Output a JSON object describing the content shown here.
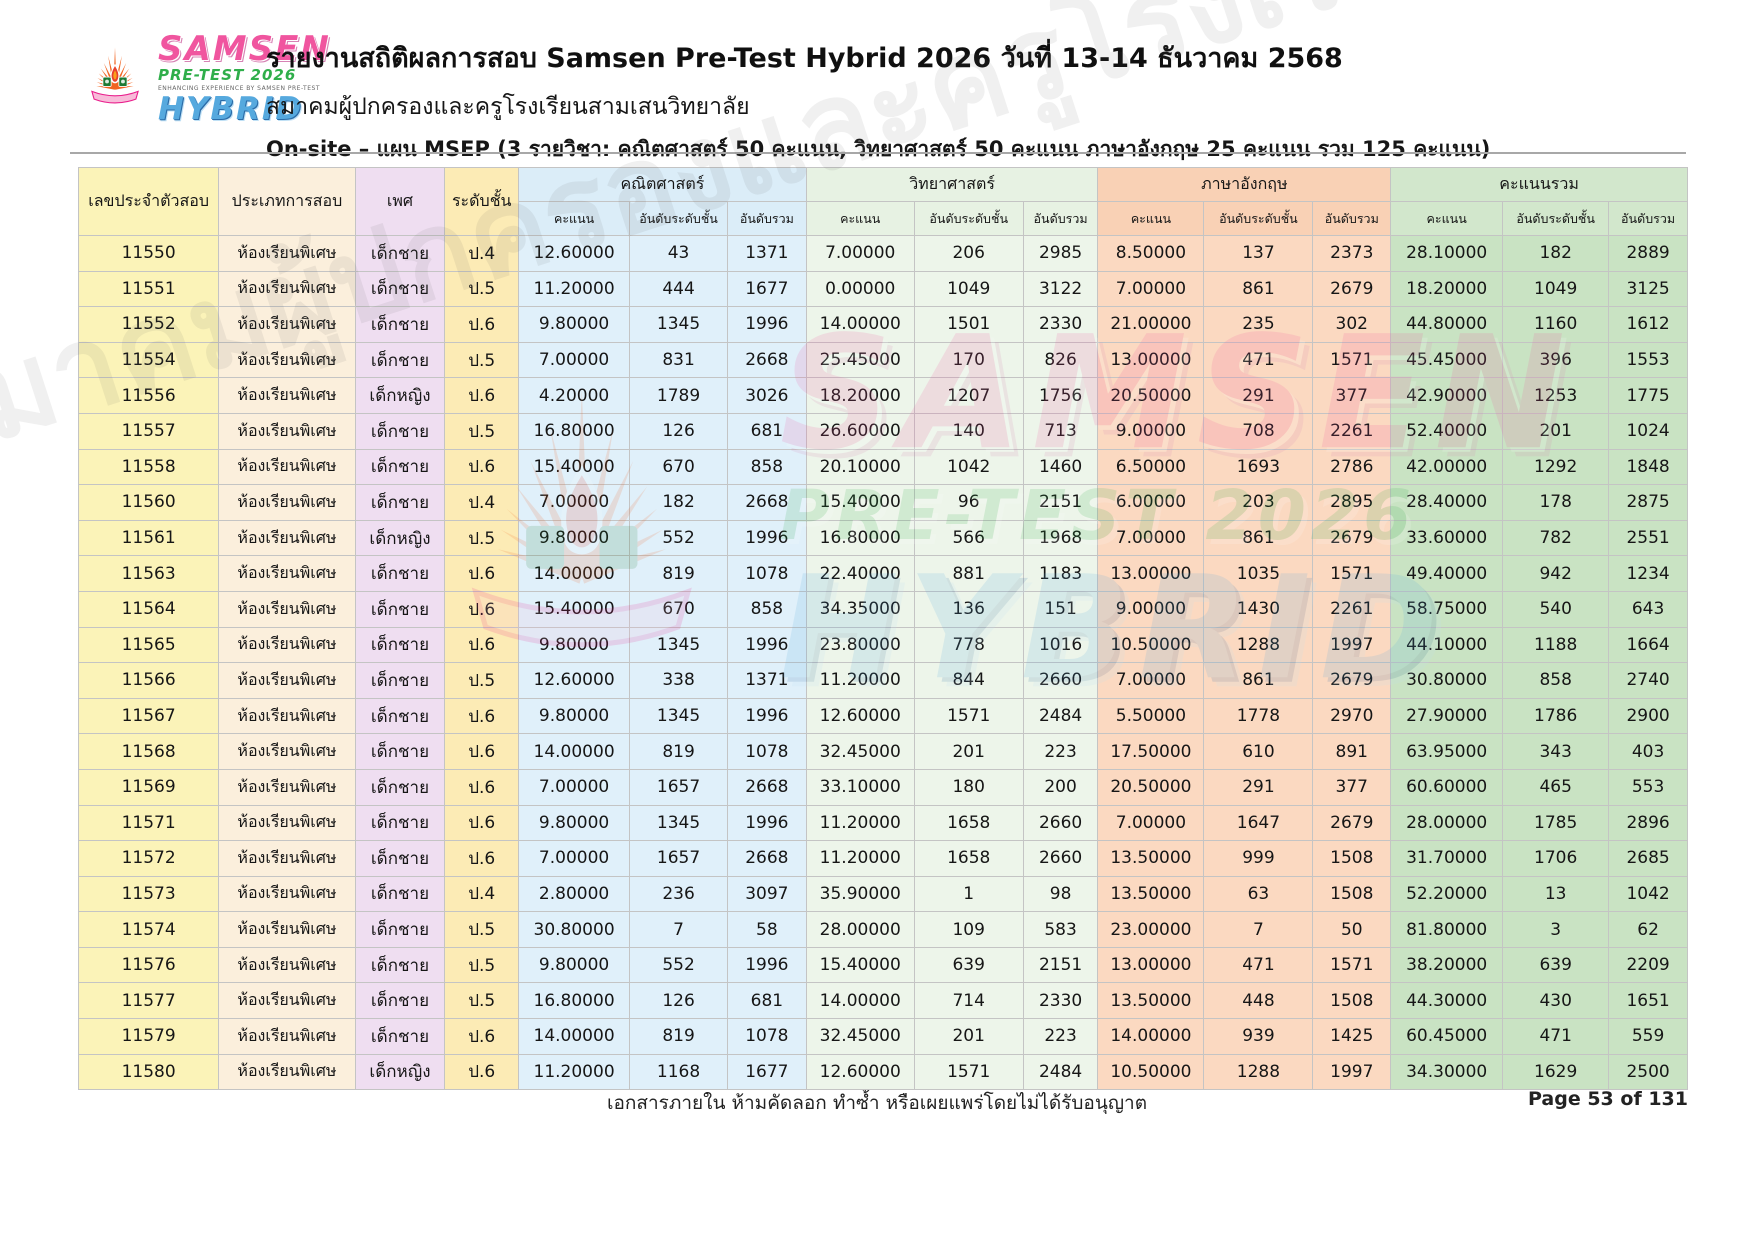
{
  "header": {
    "title": "รายงานสถิติผลการสอบ Samsen Pre-Test Hybrid 2026 วันที่ 13-14 ธันวาคม 2568",
    "subtitle": "สมาคมผู้ปกครองและครูโรงเรียนสามเสนวิทยาลัย",
    "plan_line": "On-site – แผน MSEP  (3 รายวิชา: คณิตศาสตร์ 50 คะแนน, วิทยาศาสตร์ 50 คะแนน ภาษาอังกฤษ 25 คะแนน รวม 125 คะแนน)",
    "logo": {
      "samsen": "SAMSEN",
      "pretest": "PRE-TEST 2026",
      "tagline": "ENHANCING EXPERIENCE BY SAMSEN PRE-TEST",
      "hybrid": "HYBRID",
      "colors": {
        "samsen_pink": "#F0559F",
        "pretest_green": "#2FAE4A",
        "hybrid_blue": "#56A9DE",
        "crest_orange": "#F26522",
        "flame_red": "#E8412C",
        "banner_pink": "#F8BBD9"
      }
    }
  },
  "table": {
    "base_headers": [
      "เลขประจำตัวสอบ",
      "ประเภทการสอบ",
      "เพศ",
      "ระดับชั้น"
    ],
    "base_colors": [
      "#FBF3B8",
      "#FBEFDC",
      "#EFDEF1",
      "#FCEBB5"
    ],
    "sub_headers": [
      "คะแนน",
      "อันดับระดับชั้น",
      "อันดับรวม"
    ],
    "groups": [
      {
        "label": "คณิตศาสตร์",
        "header_color": "#DBEDF8",
        "cell_color": "#E0F0FA"
      },
      {
        "label": "วิทยาศาสตร์",
        "header_color": "#E7F2E3",
        "cell_color": "#EDF5EA"
      },
      {
        "label": "ภาษาอังกฤษ",
        "header_color": "#F9D1B5",
        "cell_color": "#FBD9C1"
      },
      {
        "label": "คะแนนรวม",
        "header_color": "#D2E7CC",
        "cell_color": "#C9E3C3"
      }
    ],
    "rows": [
      [
        "11550",
        "ห้องเรียนพิเศษ",
        "เด็กชาย",
        "ป.4",
        "12.60000",
        "43",
        "1371",
        "7.00000",
        "206",
        "2985",
        "8.50000",
        "137",
        "2373",
        "28.10000",
        "182",
        "2889"
      ],
      [
        "11551",
        "ห้องเรียนพิเศษ",
        "เด็กชาย",
        "ป.5",
        "11.20000",
        "444",
        "1677",
        "0.00000",
        "1049",
        "3122",
        "7.00000",
        "861",
        "2679",
        "18.20000",
        "1049",
        "3125"
      ],
      [
        "11552",
        "ห้องเรียนพิเศษ",
        "เด็กชาย",
        "ป.6",
        "9.80000",
        "1345",
        "1996",
        "14.00000",
        "1501",
        "2330",
        "21.00000",
        "235",
        "302",
        "44.80000",
        "1160",
        "1612"
      ],
      [
        "11554",
        "ห้องเรียนพิเศษ",
        "เด็กชาย",
        "ป.5",
        "7.00000",
        "831",
        "2668",
        "25.45000",
        "170",
        "826",
        "13.00000",
        "471",
        "1571",
        "45.45000",
        "396",
        "1553"
      ],
      [
        "11556",
        "ห้องเรียนพิเศษ",
        "เด็กหญิง",
        "ป.6",
        "4.20000",
        "1789",
        "3026",
        "18.20000",
        "1207",
        "1756",
        "20.50000",
        "291",
        "377",
        "42.90000",
        "1253",
        "1775"
      ],
      [
        "11557",
        "ห้องเรียนพิเศษ",
        "เด็กชาย",
        "ป.5",
        "16.80000",
        "126",
        "681",
        "26.60000",
        "140",
        "713",
        "9.00000",
        "708",
        "2261",
        "52.40000",
        "201",
        "1024"
      ],
      [
        "11558",
        "ห้องเรียนพิเศษ",
        "เด็กชาย",
        "ป.6",
        "15.40000",
        "670",
        "858",
        "20.10000",
        "1042",
        "1460",
        "6.50000",
        "1693",
        "2786",
        "42.00000",
        "1292",
        "1848"
      ],
      [
        "11560",
        "ห้องเรียนพิเศษ",
        "เด็กชาย",
        "ป.4",
        "7.00000",
        "182",
        "2668",
        "15.40000",
        "96",
        "2151",
        "6.00000",
        "203",
        "2895",
        "28.40000",
        "178",
        "2875"
      ],
      [
        "11561",
        "ห้องเรียนพิเศษ",
        "เด็กหญิง",
        "ป.5",
        "9.80000",
        "552",
        "1996",
        "16.80000",
        "566",
        "1968",
        "7.00000",
        "861",
        "2679",
        "33.60000",
        "782",
        "2551"
      ],
      [
        "11563",
        "ห้องเรียนพิเศษ",
        "เด็กชาย",
        "ป.6",
        "14.00000",
        "819",
        "1078",
        "22.40000",
        "881",
        "1183",
        "13.00000",
        "1035",
        "1571",
        "49.40000",
        "942",
        "1234"
      ],
      [
        "11564",
        "ห้องเรียนพิเศษ",
        "เด็กชาย",
        "ป.6",
        "15.40000",
        "670",
        "858",
        "34.35000",
        "136",
        "151",
        "9.00000",
        "1430",
        "2261",
        "58.75000",
        "540",
        "643"
      ],
      [
        "11565",
        "ห้องเรียนพิเศษ",
        "เด็กชาย",
        "ป.6",
        "9.80000",
        "1345",
        "1996",
        "23.80000",
        "778",
        "1016",
        "10.50000",
        "1288",
        "1997",
        "44.10000",
        "1188",
        "1664"
      ],
      [
        "11566",
        "ห้องเรียนพิเศษ",
        "เด็กชาย",
        "ป.5",
        "12.60000",
        "338",
        "1371",
        "11.20000",
        "844",
        "2660",
        "7.00000",
        "861",
        "2679",
        "30.80000",
        "858",
        "2740"
      ],
      [
        "11567",
        "ห้องเรียนพิเศษ",
        "เด็กชาย",
        "ป.6",
        "9.80000",
        "1345",
        "1996",
        "12.60000",
        "1571",
        "2484",
        "5.50000",
        "1778",
        "2970",
        "27.90000",
        "1786",
        "2900"
      ],
      [
        "11568",
        "ห้องเรียนพิเศษ",
        "เด็กชาย",
        "ป.6",
        "14.00000",
        "819",
        "1078",
        "32.45000",
        "201",
        "223",
        "17.50000",
        "610",
        "891",
        "63.95000",
        "343",
        "403"
      ],
      [
        "11569",
        "ห้องเรียนพิเศษ",
        "เด็กชาย",
        "ป.6",
        "7.00000",
        "1657",
        "2668",
        "33.10000",
        "180",
        "200",
        "20.50000",
        "291",
        "377",
        "60.60000",
        "465",
        "553"
      ],
      [
        "11571",
        "ห้องเรียนพิเศษ",
        "เด็กชาย",
        "ป.6",
        "9.80000",
        "1345",
        "1996",
        "11.20000",
        "1658",
        "2660",
        "7.00000",
        "1647",
        "2679",
        "28.00000",
        "1785",
        "2896"
      ],
      [
        "11572",
        "ห้องเรียนพิเศษ",
        "เด็กชาย",
        "ป.6",
        "7.00000",
        "1657",
        "2668",
        "11.20000",
        "1658",
        "2660",
        "13.50000",
        "999",
        "1508",
        "31.70000",
        "1706",
        "2685"
      ],
      [
        "11573",
        "ห้องเรียนพิเศษ",
        "เด็กชาย",
        "ป.4",
        "2.80000",
        "236",
        "3097",
        "35.90000",
        "1",
        "98",
        "13.50000",
        "63",
        "1508",
        "52.20000",
        "13",
        "1042"
      ],
      [
        "11574",
        "ห้องเรียนพิเศษ",
        "เด็กชาย",
        "ป.5",
        "30.80000",
        "7",
        "58",
        "28.00000",
        "109",
        "583",
        "23.00000",
        "7",
        "50",
        "81.80000",
        "3",
        "62"
      ],
      [
        "11576",
        "ห้องเรียนพิเศษ",
        "เด็กชาย",
        "ป.5",
        "9.80000",
        "552",
        "1996",
        "15.40000",
        "639",
        "2151",
        "13.00000",
        "471",
        "1571",
        "38.20000",
        "639",
        "2209"
      ],
      [
        "11577",
        "ห้องเรียนพิเศษ",
        "เด็กชาย",
        "ป.5",
        "16.80000",
        "126",
        "681",
        "14.00000",
        "714",
        "2330",
        "13.50000",
        "448",
        "1508",
        "44.30000",
        "430",
        "1651"
      ],
      [
        "11579",
        "ห้องเรียนพิเศษ",
        "เด็กชาย",
        "ป.6",
        "14.00000",
        "819",
        "1078",
        "32.45000",
        "201",
        "223",
        "14.00000",
        "939",
        "1425",
        "60.45000",
        "471",
        "559"
      ],
      [
        "11580",
        "ห้องเรียนพิเศษ",
        "เด็กหญิง",
        "ป.6",
        "11.20000",
        "1168",
        "1677",
        "12.60000",
        "1571",
        "2484",
        "10.50000",
        "1288",
        "1997",
        "34.30000",
        "1629",
        "2500"
      ]
    ]
  },
  "footer": {
    "note": "เอกสารภายใน ห้ามคัดลอก ทำซ้ำ หรือเผยแพร่โดยไม่ได้รับอนุญาต",
    "page": "Page 53 of 131"
  },
  "watermark_text": "สมาคมผู้ปกครองและครูโรงเรียนสามเสนวิทยาลัย"
}
